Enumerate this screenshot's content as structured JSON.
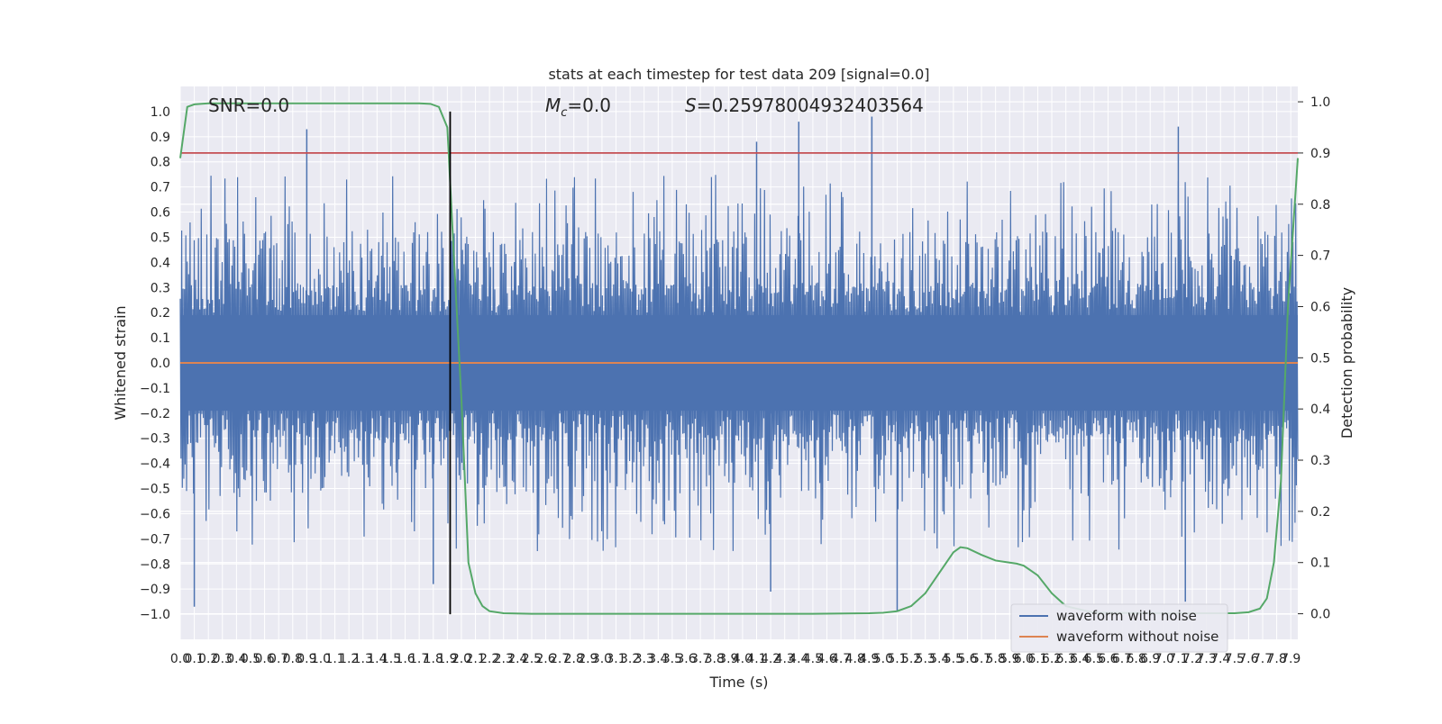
{
  "chart_data": {
    "type": "line",
    "title": "stats at each timestep for test data 209 [signal=0.0]",
    "xlabel": "Time (s)",
    "ylabel": "Whitened strain",
    "ylabel_right": "Detection probability",
    "xlim": [
      0.0,
      7.95
    ],
    "ylim": [
      -1.1,
      1.1
    ],
    "ylim_right": [
      -0.05,
      1.03
    ],
    "x_ticks": [
      "0.0",
      "0.1",
      "0.2",
      "0.3",
      "0.4",
      "0.5",
      "0.6",
      "0.7",
      "0.8",
      "0.9",
      "1.0",
      "1.1",
      "1.2",
      "1.3",
      "1.4",
      "1.5",
      "1.6",
      "1.7",
      "1.8",
      "1.9",
      "2.0",
      "2.1",
      "2.2",
      "2.3",
      "2.4",
      "2.5",
      "2.6",
      "2.7",
      "2.8",
      "2.9",
      "3.0",
      "3.1",
      "3.2",
      "3.3",
      "3.4",
      "3.5",
      "3.6",
      "3.7",
      "3.8",
      "3.9",
      "4.0",
      "4.1",
      "4.2",
      "4.3",
      "4.4",
      "4.5",
      "4.6",
      "4.7",
      "4.8",
      "4.9",
      "5.0",
      "5.1",
      "5.2",
      "5.3",
      "5.4",
      "5.5",
      "5.6",
      "5.7",
      "5.8",
      "5.9",
      "6.0",
      "6.1",
      "6.2",
      "6.3",
      "6.4",
      "6.5",
      "6.6",
      "6.7",
      "6.8",
      "6.9",
      "7.0",
      "7.1",
      "7.2",
      "7.3",
      "7.4",
      "7.5",
      "7.6",
      "7.7",
      "7.8",
      "7.9"
    ],
    "y_ticks": [
      "1.0",
      "0.9",
      "0.8",
      "0.7",
      "0.6",
      "0.5",
      "0.4",
      "0.3",
      "0.2",
      "0.1",
      "0.0",
      "−0.1",
      "−0.2",
      "−0.3",
      "−0.4",
      "−0.5",
      "−0.6",
      "−0.7",
      "−0.8",
      "−0.9",
      "−1.0"
    ],
    "y_ticks_right": [
      "1.0",
      "0.9",
      "0.8",
      "0.7",
      "0.6",
      "0.5",
      "0.4",
      "0.3",
      "0.2",
      "0.1",
      "0.0"
    ],
    "annotations": {
      "snr": "SNR=0.0",
      "mc_symbol": "M",
      "mc_sub": "c",
      "mc_value": "=0.0",
      "s_symbol": "S",
      "s_value": "=0.25978004932403564"
    },
    "threshold_right": 0.9,
    "marker_time": 1.92,
    "series": [
      {
        "name": "waveform with noise",
        "color": "#4c72b0",
        "axis": "left",
        "note": "dense noise band, approximately ±0.2–0.4 envelope with peaks to ±0.98",
        "peaks": [
          {
            "x": 0.1,
            "y": -0.97
          },
          {
            "x": 0.9,
            "y": 0.93
          },
          {
            "x": 4.1,
            "y": 0.88
          },
          {
            "x": 4.4,
            "y": 0.96
          },
          {
            "x": 4.92,
            "y": 0.98
          },
          {
            "x": 5.1,
            "y": -0.99
          },
          {
            "x": 7.1,
            "y": 0.94
          },
          {
            "x": 7.15,
            "y": -0.95
          },
          {
            "x": 4.2,
            "y": -0.91
          },
          {
            "x": 1.8,
            "y": -0.88
          }
        ]
      },
      {
        "name": "waveform without noise",
        "color": "#dd8452",
        "axis": "left",
        "x": [
          0.0,
          7.95
        ],
        "y": [
          0.0,
          0.0
        ]
      },
      {
        "color": "#55a868",
        "axis": "right",
        "x": [
          0.0,
          0.05,
          0.1,
          0.2,
          0.5,
          1.0,
          1.5,
          1.7,
          1.78,
          1.84,
          1.9,
          1.95,
          2.0,
          2.05,
          2.1,
          2.15,
          2.2,
          2.3,
          2.5,
          3.0,
          4.0,
          4.5,
          4.9,
          5.0,
          5.1,
          5.2,
          5.3,
          5.4,
          5.5,
          5.55,
          5.6,
          5.7,
          5.8,
          5.9,
          5.95,
          6.0,
          6.1,
          6.2,
          6.3,
          6.5,
          7.0,
          7.5,
          7.6,
          7.68,
          7.73,
          7.78,
          7.83,
          7.88,
          7.95
        ],
        "y": [
          0.89,
          0.99,
          0.995,
          0.997,
          0.997,
          0.997,
          0.997,
          0.997,
          0.996,
          0.99,
          0.95,
          0.68,
          0.42,
          0.1,
          0.04,
          0.015,
          0.005,
          0.001,
          0.0,
          0.0,
          0.0,
          0.0,
          0.001,
          0.002,
          0.005,
          0.015,
          0.04,
          0.08,
          0.12,
          0.13,
          0.128,
          0.115,
          0.104,
          0.1,
          0.098,
          0.094,
          0.075,
          0.04,
          0.015,
          0.002,
          0.001,
          0.001,
          0.003,
          0.01,
          0.03,
          0.1,
          0.26,
          0.6,
          0.89
        ]
      }
    ],
    "legend": {
      "position": "lower-right",
      "entries": [
        "waveform with noise",
        "waveform without noise"
      ]
    },
    "colors": {
      "plot_bg": "#eaeaf2",
      "grid": "#ffffff",
      "threshold": "#c44e52",
      "marker": "#000000"
    }
  }
}
